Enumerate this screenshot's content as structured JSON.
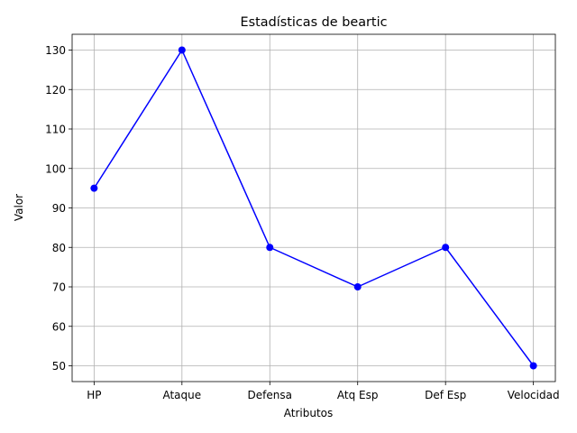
{
  "chart_data": {
    "type": "line",
    "title": "Estadísticas de beartic",
    "xlabel": "Atributos",
    "ylabel": "Valor",
    "categories": [
      "HP",
      "Ataque",
      "Defensa",
      "Atq Esp",
      "Def Esp",
      "Velocidad"
    ],
    "series": [
      {
        "values": [
          95,
          130,
          80,
          70,
          80,
          50
        ]
      }
    ],
    "ylim": [
      46,
      134
    ],
    "yticks": [
      50,
      60,
      70,
      80,
      90,
      100,
      110,
      120,
      130
    ],
    "grid": true,
    "marker": "circle",
    "line_color": "#0000ff"
  }
}
